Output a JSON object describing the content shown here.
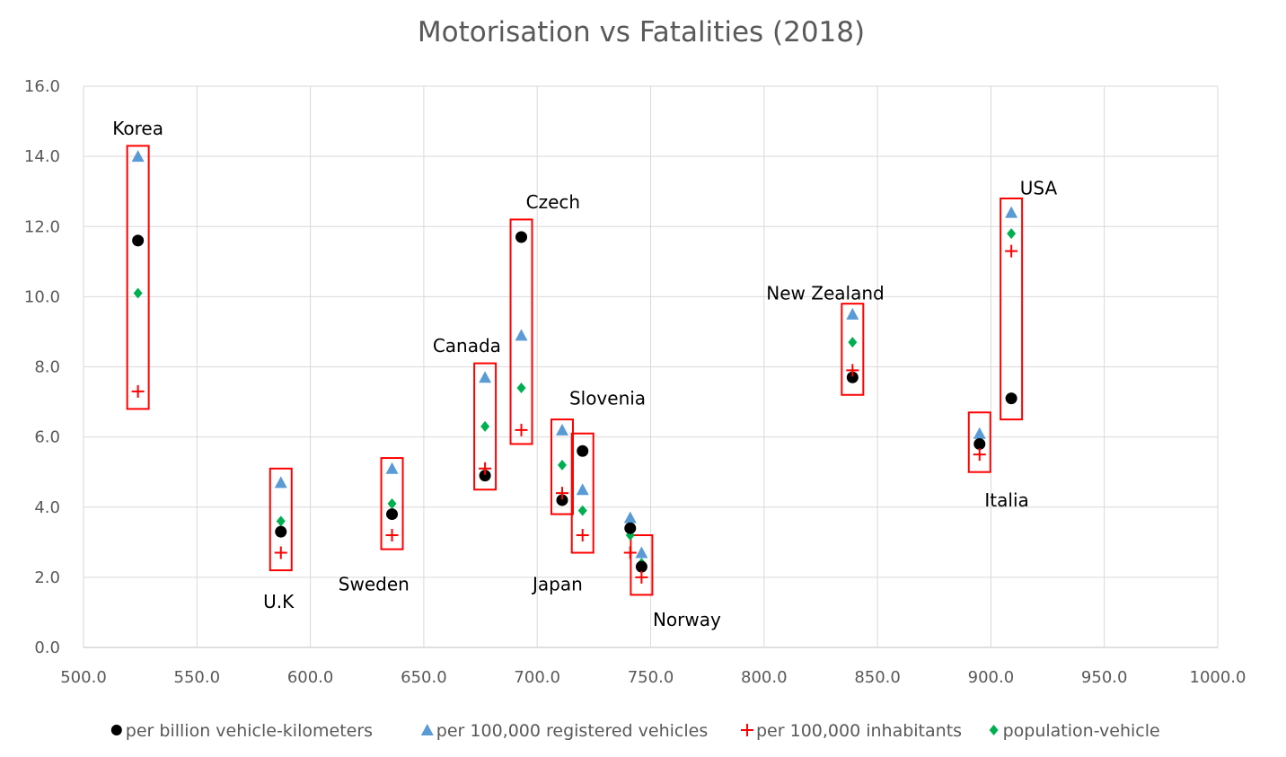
{
  "chart_data": {
    "type": "scatter",
    "title": "Motorisation vs Fatalities (2018)",
    "xlabel": "",
    "ylabel": "",
    "xlim": [
      500,
      1000
    ],
    "ylim": [
      0,
      16
    ],
    "x_ticks": [
      "500.0",
      "550.0",
      "600.0",
      "650.0",
      "700.0",
      "750.0",
      "800.0",
      "850.0",
      "900.0",
      "950.0",
      "1000.0"
    ],
    "y_ticks": [
      "0.0",
      "2.0",
      "4.0",
      "6.0",
      "8.0",
      "10.0",
      "12.0",
      "14.0",
      "16.0"
    ],
    "grid": true,
    "legend_position": "bottom",
    "series": [
      {
        "name": "per billion vehicle-kilometers",
        "marker": "circle",
        "color": "#000000",
        "points": [
          {
            "x": 524,
            "y": 11.6
          },
          {
            "x": 587,
            "y": 3.3
          },
          {
            "x": 636,
            "y": 3.8
          },
          {
            "x": 677,
            "y": 4.9
          },
          {
            "x": 693,
            "y": 11.7
          },
          {
            "x": 711,
            "y": 4.2
          },
          {
            "x": 720,
            "y": 5.6
          },
          {
            "x": 741,
            "y": 3.4
          },
          {
            "x": 746,
            "y": 2.3
          },
          {
            "x": 839,
            "y": 7.7
          },
          {
            "x": 895,
            "y": 5.8
          },
          {
            "x": 909,
            "y": 7.1
          }
        ]
      },
      {
        "name": "per 100,000 registered vehicles",
        "marker": "triangle",
        "color": "#5b9bd5",
        "points": [
          {
            "x": 524,
            "y": 14.0
          },
          {
            "x": 587,
            "y": 4.7
          },
          {
            "x": 636,
            "y": 5.1
          },
          {
            "x": 677,
            "y": 7.7
          },
          {
            "x": 693,
            "y": 8.9
          },
          {
            "x": 711,
            "y": 6.2
          },
          {
            "x": 720,
            "y": 4.5
          },
          {
            "x": 741,
            "y": 3.7
          },
          {
            "x": 746,
            "y": 2.7
          },
          {
            "x": 839,
            "y": 9.5
          },
          {
            "x": 895,
            "y": 6.1
          },
          {
            "x": 909,
            "y": 12.4
          }
        ]
      },
      {
        "name": "per 100,000 inhabitants",
        "marker": "plus",
        "color": "#ff0000",
        "points": [
          {
            "x": 524,
            "y": 7.3
          },
          {
            "x": 587,
            "y": 2.7
          },
          {
            "x": 636,
            "y": 3.2
          },
          {
            "x": 677,
            "y": 5.1
          },
          {
            "x": 693,
            "y": 6.2
          },
          {
            "x": 711,
            "y": 4.4
          },
          {
            "x": 720,
            "y": 3.2
          },
          {
            "x": 741,
            "y": 2.7
          },
          {
            "x": 746,
            "y": 2.0
          },
          {
            "x": 839,
            "y": 7.9
          },
          {
            "x": 895,
            "y": 5.5
          },
          {
            "x": 909,
            "y": 11.3
          }
        ]
      },
      {
        "name": "population-vehicle",
        "marker": "diamond",
        "color": "#00b050",
        "points": [
          {
            "x": 524,
            "y": 10.1
          },
          {
            "x": 587,
            "y": 3.6
          },
          {
            "x": 636,
            "y": 4.1
          },
          {
            "x": 677,
            "y": 6.3
          },
          {
            "x": 693,
            "y": 7.4
          },
          {
            "x": 711,
            "y": 5.2
          },
          {
            "x": 720,
            "y": 3.9
          },
          {
            "x": 741,
            "y": 3.2
          },
          {
            "x": 746,
            "y": 2.4
          },
          {
            "x": 839,
            "y": 8.7
          },
          {
            "x": 895,
            "y": 5.8
          },
          {
            "x": 909,
            "y": 11.8
          }
        ]
      }
    ],
    "annotations": [
      {
        "text": "Korea",
        "x": 524,
        "y": 14.8
      },
      {
        "text": "U.K",
        "x": 586,
        "y": 1.3
      },
      {
        "text": "Sweden",
        "x": 628,
        "y": 1.8
      },
      {
        "text": "Canada",
        "x": 669,
        "y": 8.6
      },
      {
        "text": "Czech",
        "x": 707,
        "y": 12.7
      },
      {
        "text": "Slovenia",
        "x": 731,
        "y": 7.1
      },
      {
        "text": "Japan",
        "x": 709,
        "y": 1.8
      },
      {
        "text": "Norway",
        "x": 766,
        "y": 0.8
      },
      {
        "text": "New Zealand",
        "x": 827,
        "y": 10.1
      },
      {
        "text": "Italia",
        "x": 907,
        "y": 4.2
      },
      {
        "text": "USA",
        "x": 921,
        "y": 13.1
      }
    ],
    "groups": [
      {
        "x": 524,
        "ymin": 6.8,
        "ymax": 14.3
      },
      {
        "x": 587,
        "ymin": 2.2,
        "ymax": 5.1
      },
      {
        "x": 636,
        "ymin": 2.8,
        "ymax": 5.4
      },
      {
        "x": 677,
        "ymin": 4.5,
        "ymax": 8.1
      },
      {
        "x": 693,
        "ymin": 5.8,
        "ymax": 12.2
      },
      {
        "x": 711,
        "ymin": 3.8,
        "ymax": 6.5
      },
      {
        "x": 720,
        "ymin": 2.7,
        "ymax": 6.1
      },
      {
        "x": 746,
        "ymin": 1.5,
        "ymax": 3.2
      },
      {
        "x": 839,
        "ymin": 7.2,
        "ymax": 9.8
      },
      {
        "x": 895,
        "ymin": 5.0,
        "ymax": 6.7
      },
      {
        "x": 909,
        "ymin": 6.5,
        "ymax": 12.8
      }
    ]
  }
}
